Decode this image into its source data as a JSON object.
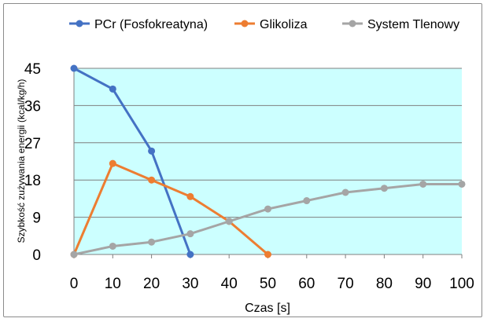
{
  "chart_data": {
    "type": "line",
    "xlabel": "Czas [s]",
    "ylabel": "Szybkość zużywania energii (kcal/kg/h)",
    "xlim": [
      0,
      100
    ],
    "ylim": [
      0,
      45
    ],
    "x_ticks": [
      "0",
      "10",
      "20",
      "30",
      "40",
      "50",
      "60",
      "70",
      "80",
      "90",
      "100"
    ],
    "y_ticks": [
      "0",
      "9",
      "18",
      "27",
      "36",
      "45"
    ],
    "grid": "horizontal",
    "legend_position": "top",
    "plot_background": "#ccffff",
    "series": [
      {
        "name": "PCr (Fosfokreatyna)",
        "color": "#4472c4",
        "x": [
          0,
          10,
          20,
          30
        ],
        "y": [
          45,
          40,
          25,
          0
        ]
      },
      {
        "name": "Glikoliza",
        "color": "#ed7d31",
        "x": [
          0,
          10,
          20,
          30,
          40,
          50
        ],
        "y": [
          0,
          22,
          18,
          14,
          8,
          0
        ]
      },
      {
        "name": "System Tlenowy",
        "color": "#a5a5a5",
        "x": [
          0,
          10,
          20,
          30,
          40,
          50,
          60,
          70,
          80,
          90,
          100
        ],
        "y": [
          0,
          2,
          3,
          5,
          8,
          11,
          13,
          15,
          16,
          17,
          17
        ]
      }
    ]
  }
}
